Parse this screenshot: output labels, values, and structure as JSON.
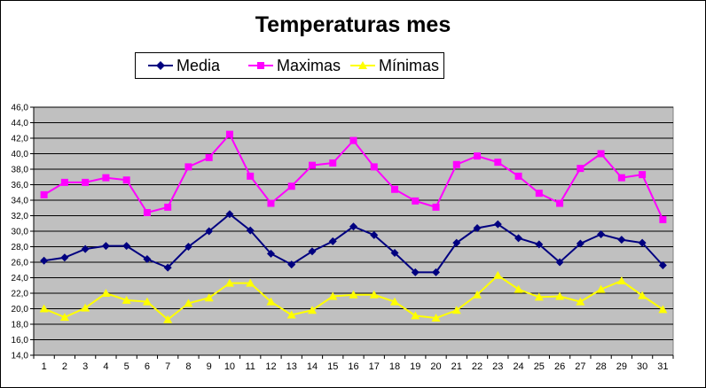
{
  "chart_data": {
    "type": "line",
    "title": "Temperaturas mes",
    "xlabel": "",
    "ylabel": "",
    "x": [
      1,
      2,
      3,
      4,
      5,
      6,
      7,
      8,
      9,
      10,
      11,
      12,
      13,
      14,
      15,
      16,
      17,
      18,
      19,
      20,
      21,
      22,
      23,
      24,
      25,
      26,
      27,
      28,
      29,
      30,
      31
    ],
    "y_ticks": [
      "14,0",
      "16,0",
      "18,0",
      "20,0",
      "22,0",
      "24,0",
      "26,0",
      "28,0",
      "30,0",
      "32,0",
      "34,0",
      "36,0",
      "38,0",
      "40,0",
      "42,0",
      "44,0",
      "46,0"
    ],
    "ylim": [
      14,
      46
    ],
    "grid": true,
    "plot_background": "#c0c0c0",
    "legend_position": "top",
    "series": [
      {
        "name": "Media",
        "color": "#000080",
        "marker": "diamond",
        "values": [
          26.2,
          26.6,
          27.7,
          28.1,
          28.1,
          26.4,
          25.3,
          28.0,
          30.0,
          32.2,
          30.1,
          27.1,
          25.7,
          27.4,
          28.7,
          30.6,
          29.5,
          27.2,
          24.7,
          24.7,
          28.5,
          30.4,
          30.9,
          29.1,
          28.3,
          26.0,
          28.4,
          29.6,
          28.9,
          28.5,
          25.6
        ]
      },
      {
        "name": "Maximas",
        "color": "#ff00ff",
        "marker": "square",
        "values": [
          34.7,
          36.3,
          36.3,
          36.9,
          36.6,
          32.4,
          33.1,
          38.3,
          39.5,
          42.5,
          37.1,
          33.6,
          35.8,
          38.5,
          38.8,
          41.7,
          38.3,
          35.4,
          33.9,
          33.1,
          38.6,
          39.7,
          38.9,
          37.1,
          34.9,
          33.6,
          38.1,
          40.0,
          36.9,
          37.3,
          31.5
        ]
      },
      {
        "name": "Mínimas",
        "color": "#ffff00",
        "marker": "triangle",
        "values": [
          20.0,
          18.9,
          20.1,
          22.0,
          21.1,
          20.9,
          18.6,
          20.7,
          21.4,
          23.3,
          23.3,
          20.9,
          19.2,
          19.8,
          21.6,
          21.8,
          21.8,
          20.9,
          19.1,
          18.8,
          19.8,
          21.8,
          24.3,
          22.5,
          21.5,
          21.6,
          20.9,
          22.5,
          23.6,
          21.7,
          19.9
        ]
      }
    ]
  }
}
